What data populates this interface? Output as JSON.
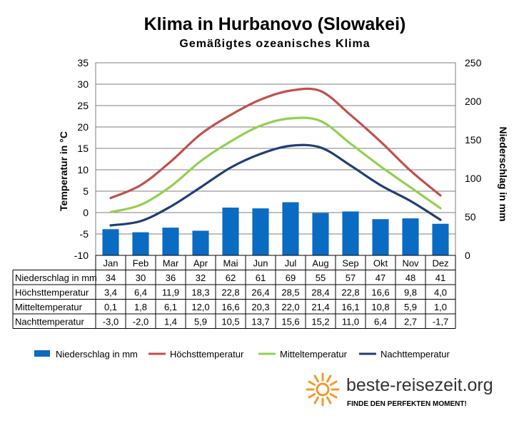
{
  "title": "Klima in Hurbanovo (Slowakei)",
  "subtitle": "Gemäßigtes ozeanisches Klima",
  "chart_data": {
    "type": "bar",
    "categories": [
      "Jan",
      "Feb",
      "Mar",
      "Apr",
      "Mai",
      "Jun",
      "Jul",
      "Aug",
      "Sep",
      "Okt",
      "Nov",
      "Dez"
    ],
    "ylabel": "Temperatur in °C",
    "y2label": "Niederschlag in mm",
    "ylim": [
      -10,
      35
    ],
    "y2lim": [
      0,
      250
    ],
    "yticks": [
      "35",
      "30",
      "25",
      "20",
      "15",
      "10",
      "5",
      "0",
      "-5",
      "-10"
    ],
    "y2ticks": [
      "250",
      "200",
      "150",
      "100",
      "50",
      "0"
    ],
    "grid": true,
    "legend_position": "bottom",
    "series": [
      {
        "name": "Niederschlag in mm",
        "kind": "bar",
        "axis": "right",
        "color": "#0a6bc2",
        "values": [
          34,
          30,
          36,
          32,
          62,
          61,
          69,
          55,
          57,
          47,
          48,
          41
        ],
        "labels": [
          "34",
          "30",
          "36",
          "32",
          "62",
          "61",
          "69",
          "55",
          "57",
          "47",
          "48",
          "41"
        ]
      },
      {
        "name": "Höchsttemperatur",
        "kind": "line",
        "axis": "left",
        "color": "#c0504d",
        "values": [
          3.4,
          6.4,
          11.9,
          18.3,
          22.8,
          26.4,
          28.5,
          28.4,
          22.8,
          16.6,
          9.8,
          4.0
        ],
        "labels": [
          "3,4",
          "6,4",
          "11,9",
          "18,3",
          "22,8",
          "26,4",
          "28,5",
          "28,4",
          "22,8",
          "16,6",
          "9,8",
          "4,0"
        ]
      },
      {
        "name": "Mitteltemperatur",
        "kind": "line",
        "axis": "left",
        "color": "#92d050",
        "values": [
          0.1,
          1.8,
          6.1,
          12.0,
          16.6,
          20.3,
          22.0,
          21.4,
          16.1,
          10.8,
          5.9,
          1.0
        ],
        "labels": [
          "0,1",
          "1,8",
          "6,1",
          "12,0",
          "16,6",
          "20,3",
          "22,0",
          "21,4",
          "16,1",
          "10,8",
          "5,9",
          "1,0"
        ]
      },
      {
        "name": "Nachttemperatur",
        "kind": "line",
        "axis": "left",
        "color": "#1f3f73",
        "values": [
          -3.0,
          -2.0,
          1.4,
          5.9,
          10.5,
          13.7,
          15.6,
          15.2,
          11.0,
          6.4,
          2.7,
          -1.7
        ],
        "labels": [
          "-3,0",
          "-2,0",
          "1,4",
          "5,9",
          "10,5",
          "13,7",
          "15,6",
          "15,2",
          "11,0",
          "6,4",
          "2,7",
          "-1,7"
        ]
      }
    ]
  },
  "logo": {
    "text": "beste-reisezeit.org",
    "slogan": "FINDE DEN PERFEKTEN MOMENT!",
    "icon": "sun-icon",
    "accent": "#f39a2b"
  }
}
